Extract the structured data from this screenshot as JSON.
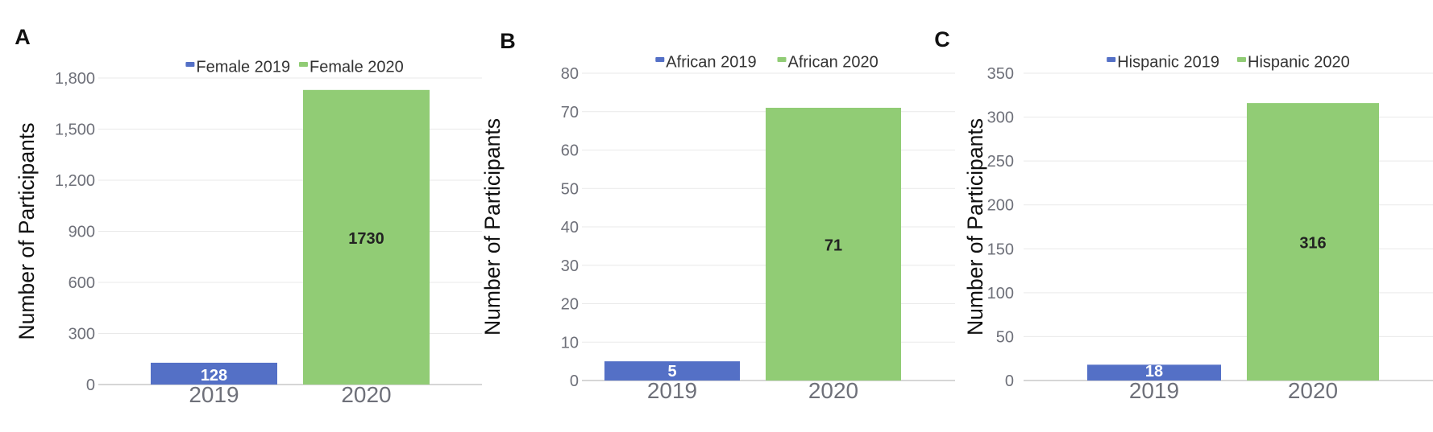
{
  "colors": {
    "series_2019": "#5470C6",
    "series_2020": "#91CC75",
    "grid": "#E9E9E9",
    "axis": "#C8C8C8",
    "tick_text": "#6E7079"
  },
  "chart_data": [
    {
      "panel_label": "A",
      "type": "bar",
      "categories": [
        "2019",
        "2020"
      ],
      "series": [
        {
          "name": "Female 2019",
          "values": [
            128,
            null
          ]
        },
        {
          "name": "Female 2020",
          "values": [
            null,
            1730
          ]
        }
      ],
      "data_labels": [
        "128",
        "1730"
      ],
      "ylabel": "Number of Participants",
      "ylim": [
        0,
        1800
      ],
      "yticks": [
        0,
        300,
        600,
        900,
        1200,
        1500,
        1800
      ],
      "ytick_labels": [
        "0",
        "300",
        "600",
        "900",
        "1,200",
        "1,500",
        "1,800"
      ],
      "grid": true,
      "legend": "top-center"
    },
    {
      "panel_label": "B",
      "type": "bar",
      "categories": [
        "2019",
        "2020"
      ],
      "series": [
        {
          "name": "African 2019",
          "values": [
            5,
            null
          ]
        },
        {
          "name": "African 2020",
          "values": [
            null,
            71
          ]
        }
      ],
      "data_labels": [
        "5",
        "71"
      ],
      "ylabel": "Number of Participants",
      "ylim": [
        0,
        80
      ],
      "yticks": [
        0,
        10,
        20,
        30,
        40,
        50,
        60,
        70,
        80
      ],
      "ytick_labels": [
        "0",
        "10",
        "20",
        "30",
        "40",
        "50",
        "60",
        "70",
        "80"
      ],
      "grid": true,
      "legend": "top-center"
    },
    {
      "panel_label": "C",
      "type": "bar",
      "categories": [
        "2019",
        "2020"
      ],
      "series": [
        {
          "name": "Hispanic 2019",
          "values": [
            18,
            null
          ]
        },
        {
          "name": "Hispanic 2020",
          "values": [
            null,
            316
          ]
        }
      ],
      "data_labels": [
        "18",
        "316"
      ],
      "ylabel": "Number of Participants",
      "ylim": [
        0,
        350
      ],
      "yticks": [
        0,
        50,
        100,
        150,
        200,
        250,
        300,
        350
      ],
      "ytick_labels": [
        "0",
        "50",
        "100",
        "150",
        "200",
        "250",
        "300",
        "350"
      ],
      "grid": true,
      "legend": "top-center"
    }
  ]
}
